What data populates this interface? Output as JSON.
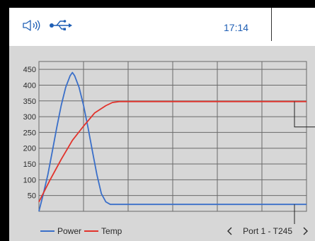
{
  "status_bar": {
    "time": "17:14",
    "icons": [
      "speaker-icon",
      "usb-icon"
    ],
    "accent_color": "#1f5fb5"
  },
  "navigation": {
    "port_label": "Port 1",
    "separator": "-",
    "tool": "T245",
    "prev_icon": "chevron-left-icon",
    "next_icon": "chevron-right-icon"
  },
  "chart_data": {
    "type": "line",
    "title": "",
    "xlabel": "",
    "ylabel": "",
    "y_ticks": [
      50,
      100,
      150,
      200,
      250,
      300,
      350,
      400,
      450
    ],
    "ylim": [
      0,
      475
    ],
    "xlim": [
      0,
      6
    ],
    "grid": true,
    "legend": "bottom-left",
    "series": [
      {
        "name": "Power",
        "color": "#3a6fc9",
        "x": [
          0,
          0.1,
          0.2,
          0.3,
          0.4,
          0.5,
          0.6,
          0.7,
          0.75,
          0.8,
          0.9,
          1.0,
          1.1,
          1.2,
          1.3,
          1.4,
          1.5,
          1.6,
          1.7,
          1.8,
          1.9,
          2.0,
          6.0
        ],
        "y": [
          0,
          56,
          116,
          190,
          266,
          336,
          393,
          430,
          440,
          430,
          393,
          336,
          266,
          190,
          116,
          56,
          30,
          22,
          22,
          22,
          22,
          22,
          22
        ]
      },
      {
        "name": "Temp",
        "color": "#e2322b",
        "x": [
          0,
          0.25,
          0.5,
          0.75,
          1.0,
          1.25,
          1.5,
          1.65,
          1.8,
          6.0
        ],
        "y": [
          30,
          100,
          165,
          225,
          270,
          312,
          335,
          345,
          348,
          348
        ]
      }
    ]
  }
}
